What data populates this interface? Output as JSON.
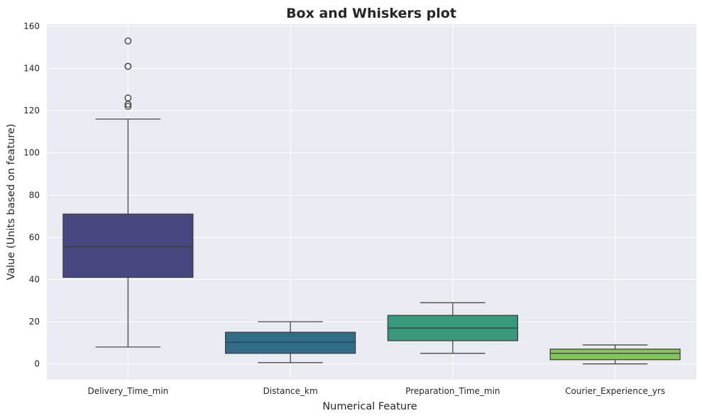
{
  "chart_data": {
    "type": "box",
    "title": "Box and Whiskers plot",
    "xlabel": "Numerical Feature",
    "ylabel": "Value (Units based on feature)",
    "ylim": [
      -7.5,
      161
    ],
    "yticks": [
      0,
      20,
      40,
      60,
      80,
      100,
      120,
      140,
      160
    ],
    "grid": true,
    "background": "#eaeaf2",
    "categories": [
      "Delivery_Time_min",
      "Distance_km",
      "Preparation_Time_min",
      "Courier_Experience_yrs"
    ],
    "boxes": [
      {
        "name": "Delivery_Time_min",
        "whisker_low": 8,
        "q1": 41,
        "median": 55.5,
        "q3": 71,
        "whisker_high": 116,
        "outliers": [
          122,
          123,
          126,
          141,
          141,
          153
        ],
        "color": "#48477f"
      },
      {
        "name": "Distance_km",
        "whisker_low": 0.6,
        "q1": 5,
        "median": 10.2,
        "q3": 15,
        "whisker_high": 20,
        "outliers": [],
        "color": "#316d85"
      },
      {
        "name": "Preparation_Time_min",
        "whisker_low": 5,
        "q1": 11,
        "median": 17,
        "q3": 23,
        "whisker_high": 29,
        "outliers": [],
        "color": "#37987b"
      },
      {
        "name": "Courier_Experience_yrs",
        "whisker_low": 0,
        "q1": 2,
        "median": 5,
        "q3": 7,
        "whisker_high": 9,
        "outliers": [],
        "color": "#83c55a"
      }
    ]
  }
}
